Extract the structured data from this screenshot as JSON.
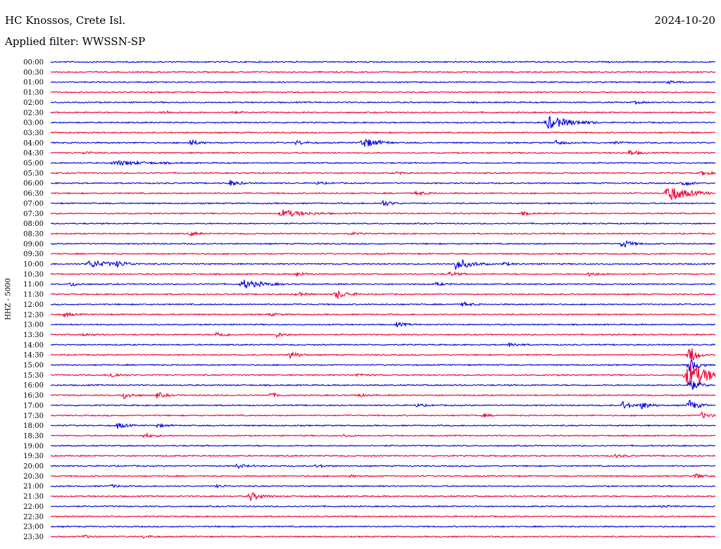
{
  "header": {
    "station": "HC Knossos, Crete Isl.",
    "date": "2024-10-20",
    "filter": "Applied filter: WWSSN-SP"
  },
  "chart_data": {
    "type": "line",
    "ylabel": "HHZ - 5000",
    "colors": [
      "#0000dd",
      "#ee0033"
    ],
    "rows": [
      {
        "label": "00:00",
        "events": []
      },
      {
        "label": "00:30",
        "events": []
      },
      {
        "label": "01:00",
        "events": [
          {
            "x": 0.93,
            "a": 2
          }
        ]
      },
      {
        "label": "01:30",
        "events": []
      },
      {
        "label": "02:00",
        "events": [
          {
            "x": 0.88,
            "a": 1.5
          }
        ]
      },
      {
        "label": "02:30",
        "events": [
          {
            "x": 0.17,
            "a": 2
          },
          {
            "x": 0.27,
            "a": 1.5
          }
        ]
      },
      {
        "label": "03:00",
        "events": [
          {
            "x": 0.75,
            "a": 9,
            "w": 0.03
          }
        ]
      },
      {
        "label": "03:30",
        "events": []
      },
      {
        "label": "04:00",
        "events": [
          {
            "x": 0.21,
            "a": 4
          },
          {
            "x": 0.37,
            "a": 3
          },
          {
            "x": 0.47,
            "a": 7,
            "w": 0.02
          },
          {
            "x": 0.76,
            "a": 3
          },
          {
            "x": 0.85,
            "a": 1.5
          }
        ]
      },
      {
        "label": "04:30",
        "events": [
          {
            "x": 0.05,
            "a": 2
          },
          {
            "x": 0.87,
            "a": 4
          }
        ]
      },
      {
        "label": "05:00",
        "events": [
          {
            "x": 0.1,
            "a": 3,
            "w": 0.04
          }
        ]
      },
      {
        "label": "05:30",
        "events": [
          {
            "x": 0.98,
            "a": 3
          },
          {
            "x": 0.52,
            "a": 1.5
          }
        ]
      },
      {
        "label": "06:00",
        "events": [
          {
            "x": 0.27,
            "a": 4
          },
          {
            "x": 0.4,
            "a": 1.5
          },
          {
            "x": 0.95,
            "a": 4
          }
        ]
      },
      {
        "label": "06:30",
        "events": [
          {
            "x": 0.55,
            "a": 3
          },
          {
            "x": 0.93,
            "a": 12,
            "w": 0.025
          }
        ]
      },
      {
        "label": "07:00",
        "events": [
          {
            "x": 0.5,
            "a": 4
          }
        ]
      },
      {
        "label": "07:30",
        "events": [
          {
            "x": 0.35,
            "a": 5,
            "w": 0.03
          },
          {
            "x": 0.71,
            "a": 2
          }
        ]
      },
      {
        "label": "08:00",
        "events": []
      },
      {
        "label": "08:30",
        "events": [
          {
            "x": 0.21,
            "a": 2.5
          },
          {
            "x": 0.45,
            "a": 1.5
          }
        ]
      },
      {
        "label": "09:00",
        "events": [
          {
            "x": 0.86,
            "a": 6
          }
        ]
      },
      {
        "label": "09:30",
        "events": []
      },
      {
        "label": "10:00",
        "events": [
          {
            "x": 0.06,
            "a": 5,
            "w": 0.03
          },
          {
            "x": 0.1,
            "a": 3
          },
          {
            "x": 0.61,
            "a": 8,
            "w": 0.02
          },
          {
            "x": 0.68,
            "a": 2
          }
        ]
      },
      {
        "label": "10:30",
        "events": [
          {
            "x": 0.37,
            "a": 3
          },
          {
            "x": 0.6,
            "a": 3
          },
          {
            "x": 0.81,
            "a": 3
          }
        ]
      },
      {
        "label": "11:00",
        "events": [
          {
            "x": 0.03,
            "a": 3
          },
          {
            "x": 0.29,
            "a": 6,
            "w": 0.025
          },
          {
            "x": 0.58,
            "a": 2
          }
        ]
      },
      {
        "label": "11:30",
        "events": [
          {
            "x": 0.37,
            "a": 3
          },
          {
            "x": 0.43,
            "a": 6,
            "w": 0.015
          }
        ]
      },
      {
        "label": "12:00",
        "events": [
          {
            "x": 0.62,
            "a": 3
          }
        ]
      },
      {
        "label": "12:30",
        "events": [
          {
            "x": 0.02,
            "a": 3
          },
          {
            "x": 0.33,
            "a": 2
          }
        ]
      },
      {
        "label": "13:00",
        "events": [
          {
            "x": 0.52,
            "a": 3
          }
        ]
      },
      {
        "label": "13:30",
        "events": [
          {
            "x": 0.25,
            "a": 4
          },
          {
            "x": 0.34,
            "a": 3
          },
          {
            "x": 0.05,
            "a": 2
          }
        ]
      },
      {
        "label": "14:00",
        "events": [
          {
            "x": 0.69,
            "a": 3
          }
        ]
      },
      {
        "label": "14:30",
        "events": [
          {
            "x": 0.36,
            "a": 5
          },
          {
            "x": 0.96,
            "a": 16,
            "w": 0.01
          }
        ]
      },
      {
        "label": "15:00",
        "events": [
          {
            "x": 0.96,
            "a": 10
          }
        ]
      },
      {
        "label": "15:30",
        "events": [
          {
            "x": 0.09,
            "a": 4
          },
          {
            "x": 0.46,
            "a": 2
          },
          {
            "x": 0.96,
            "a": 18,
            "w": 0.03
          }
        ]
      },
      {
        "label": "16:00",
        "events": [
          {
            "x": 0.96,
            "a": 10
          }
        ]
      },
      {
        "label": "16:30",
        "events": [
          {
            "x": 0.11,
            "a": 5
          },
          {
            "x": 0.16,
            "a": 4
          },
          {
            "x": 0.33,
            "a": 3
          },
          {
            "x": 0.46,
            "a": 2
          }
        ]
      },
      {
        "label": "17:00",
        "events": [
          {
            "x": 0.55,
            "a": 2
          },
          {
            "x": 0.86,
            "a": 6
          },
          {
            "x": 0.89,
            "a": 5
          },
          {
            "x": 0.96,
            "a": 8
          }
        ]
      },
      {
        "label": "17:30",
        "events": [
          {
            "x": 0.98,
            "a": 4
          },
          {
            "x": 0.65,
            "a": 1.5
          }
        ]
      },
      {
        "label": "18:00",
        "events": [
          {
            "x": 0.1,
            "a": 4
          },
          {
            "x": 0.16,
            "a": 2
          }
        ]
      },
      {
        "label": "18:30",
        "events": [
          {
            "x": 0.14,
            "a": 3
          },
          {
            "x": 0.44,
            "a": 1.5
          }
        ]
      },
      {
        "label": "19:00",
        "events": []
      },
      {
        "label": "19:30",
        "events": [
          {
            "x": 0.85,
            "a": 2
          }
        ]
      },
      {
        "label": "20:00",
        "events": [
          {
            "x": 0.28,
            "a": 3
          },
          {
            "x": 0.4,
            "a": 2
          }
        ]
      },
      {
        "label": "20:30",
        "events": [
          {
            "x": 0.97,
            "a": 3
          },
          {
            "x": 0.45,
            "a": 1.5
          }
        ]
      },
      {
        "label": "21:00",
        "events": [
          {
            "x": 0.09,
            "a": 2
          },
          {
            "x": 0.25,
            "a": 1.5
          }
        ]
      },
      {
        "label": "21:30",
        "events": [
          {
            "x": 0.3,
            "a": 6,
            "w": 0.015
          }
        ]
      },
      {
        "label": "22:00",
        "events": [
          {
            "x": 0.92,
            "a": 1.5
          }
        ]
      },
      {
        "label": "22:30",
        "events": []
      },
      {
        "label": "23:00",
        "events": []
      },
      {
        "label": "23:30",
        "events": [
          {
            "x": 0.05,
            "a": 2
          },
          {
            "x": 0.14,
            "a": 2
          }
        ]
      }
    ]
  }
}
